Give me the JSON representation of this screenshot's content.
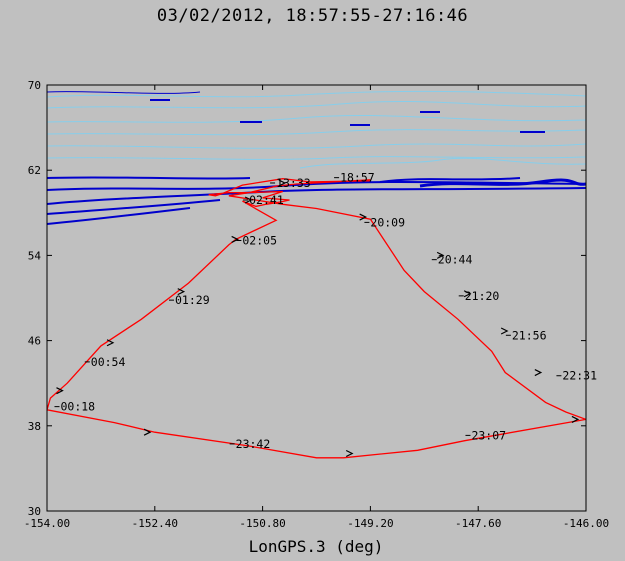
{
  "chart_data": {
    "type": "line",
    "title": "03/02/2012, 18:57:55-27:16:46",
    "xlabel": "LonGPS.3 (deg)",
    "ylabel": "",
    "xlim": [
      -154.0,
      -146.0
    ],
    "ylim": [
      30,
      70
    ],
    "x_ticks": [
      -154.0,
      -152.4,
      -150.8,
      -149.2,
      -147.6,
      -146.0
    ],
    "x_tick_labels": [
      "-154.00",
      "-152.40",
      "-150.80",
      "-149.20",
      "-147.60",
      "-146.00"
    ],
    "y_ticks": [
      30,
      38,
      46,
      54,
      62,
      70
    ],
    "y_tick_labels": [
      "30",
      "38",
      "46",
      "54",
      "62",
      "70"
    ],
    "grid": false,
    "colors": {
      "track": "#ff0000",
      "background": "#c0c0c0",
      "contour_dark": "#0000cc",
      "contour_light": "#87ceeb",
      "arrow": "#000000"
    },
    "series": [
      {
        "color": "#ff0000",
        "points": [
          [
            -149.2,
            61.0
          ],
          [
            -150.1,
            60.9
          ],
          [
            -150.5,
            61.2
          ],
          [
            -151.1,
            60.6
          ],
          [
            -151.4,
            59.8
          ],
          [
            -151.5,
            59.6
          ],
          [
            -151.6,
            59.7
          ],
          [
            -151.3,
            59.9
          ],
          [
            -151.0,
            59.9
          ],
          [
            -150.5,
            60.0
          ],
          [
            -150.8,
            59.4
          ],
          [
            -150.4,
            59.2
          ],
          [
            -150.55,
            59.0
          ],
          [
            -150.75,
            58.8
          ],
          [
            -150.9,
            58.6
          ],
          [
            -151.1,
            59.1
          ],
          [
            -150.6,
            57.3
          ],
          [
            -151.2,
            55.5
          ],
          [
            -151.3,
            55.0
          ],
          [
            -151.9,
            51.4
          ],
          [
            -152.6,
            48.0
          ],
          [
            -153.2,
            45.5
          ],
          [
            -153.7,
            42.0
          ],
          [
            -153.95,
            40.6
          ],
          [
            -154.0,
            39.5
          ],
          [
            -153.0,
            38.3
          ],
          [
            -152.4,
            37.4
          ],
          [
            -151.0,
            36.1
          ],
          [
            -150.0,
            35.0
          ],
          [
            -149.6,
            35.0
          ],
          [
            -148.5,
            35.7
          ],
          [
            -147.8,
            36.6
          ],
          [
            -146.0,
            38.6
          ],
          [
            -146.3,
            39.3
          ],
          [
            -146.6,
            40.2
          ],
          [
            -147.2,
            43.0
          ],
          [
            -147.4,
            45.0
          ],
          [
            -147.9,
            48.0
          ],
          [
            -148.4,
            50.6
          ],
          [
            -148.7,
            52.6
          ],
          [
            -149.2,
            57.4
          ],
          [
            -150.0,
            58.4
          ],
          [
            -150.5,
            58.8
          ],
          [
            -151.0,
            59.3
          ],
          [
            -151.3,
            59.6
          ],
          [
            -151.0,
            59.9
          ],
          [
            -150.6,
            60.5
          ],
          [
            -150.3,
            60.7
          ],
          [
            -149.2,
            61.1
          ]
        ]
      }
    ],
    "annotations": [
      {
        "text": "00:18",
        "x": -153.8,
        "y": 39.8
      },
      {
        "text": "00:54",
        "x": -153.35,
        "y": 44.0
      },
      {
        "text": "01:29",
        "x": -152.1,
        "y": 49.8
      },
      {
        "text": "02:05",
        "x": -151.1,
        "y": 55.4
      },
      {
        "text": "02:41",
        "x": -151.0,
        "y": 59.2
      },
      {
        "text": "13:33",
        "x": -150.6,
        "y": 60.8
      },
      {
        "text": "18:57",
        "x": -149.65,
        "y": 61.3
      },
      {
        "text": "20:09",
        "x": -149.2,
        "y": 57.1
      },
      {
        "text": "20:44",
        "x": -148.2,
        "y": 53.6
      },
      {
        "text": "21:20",
        "x": -147.8,
        "y": 50.2
      },
      {
        "text": "21:56",
        "x": -147.1,
        "y": 46.5
      },
      {
        "text": "22:31",
        "x": -146.35,
        "y": 42.7
      },
      {
        "text": "23:07",
        "x": -147.7,
        "y": 37.1
      },
      {
        "text": "23:42",
        "x": -151.2,
        "y": 36.3
      }
    ],
    "direction_arrows": [
      [
        -153.8,
        41.3
      ],
      [
        -153.05,
        45.8
      ],
      [
        -152.0,
        50.6
      ],
      [
        -151.2,
        55.5
      ],
      [
        -151.0,
        59.2
      ],
      [
        -149.3,
        57.6
      ],
      [
        -148.15,
        54.0
      ],
      [
        -147.75,
        50.4
      ],
      [
        -147.2,
        46.9
      ],
      [
        -146.7,
        43.0
      ],
      [
        -146.15,
        38.6
      ],
      [
        -149.5,
        35.4
      ],
      [
        -152.5,
        37.4
      ],
      [
        -150.5,
        60.8
      ]
    ]
  }
}
